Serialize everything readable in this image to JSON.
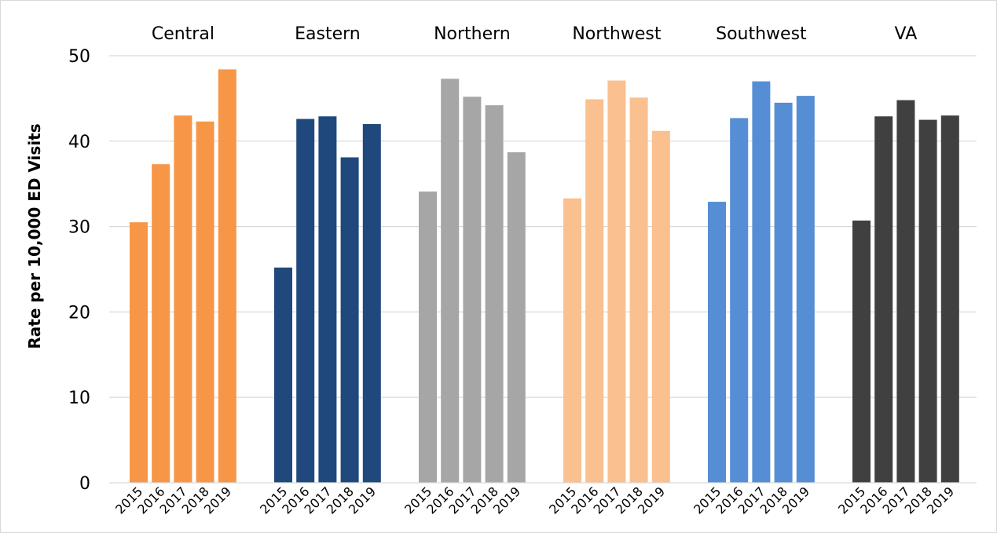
{
  "chart_data": {
    "type": "bar",
    "title": "",
    "xlabel": "",
    "ylabel": "Rate per 10,000 ED Visits",
    "ylim": [
      0,
      50
    ],
    "yticks": [
      0,
      10,
      20,
      30,
      40,
      50
    ],
    "grid": true,
    "legend": "none",
    "categories": [
      "2015",
      "2016",
      "2017",
      "2018",
      "2019"
    ],
    "groups": [
      {
        "name": "Central",
        "color": "#f79646",
        "values": [
          30.5,
          37.3,
          43.0,
          42.3,
          48.4
        ]
      },
      {
        "name": "Eastern",
        "color": "#1f497d",
        "values": [
          25.2,
          42.6,
          42.9,
          38.1,
          42.0
        ]
      },
      {
        "name": "Northern",
        "color": "#a6a6a6",
        "values": [
          34.1,
          47.3,
          45.2,
          44.2,
          38.7
        ]
      },
      {
        "name": "Northwest",
        "color": "#fac090",
        "values": [
          33.3,
          44.9,
          47.1,
          45.1,
          41.2
        ]
      },
      {
        "name": "Southwest",
        "color": "#558ed5",
        "values": [
          32.9,
          42.7,
          47.0,
          44.5,
          45.3
        ]
      },
      {
        "name": "VA",
        "color": "#404040",
        "values": [
          30.7,
          42.9,
          44.8,
          42.5,
          43.0
        ]
      }
    ]
  }
}
